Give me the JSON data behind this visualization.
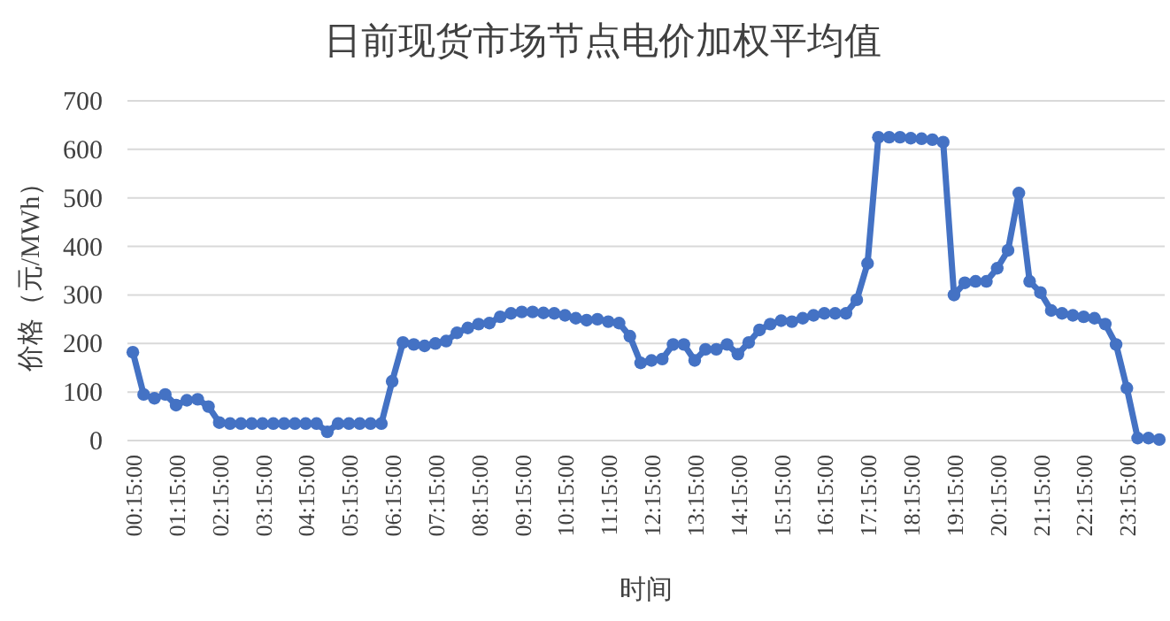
{
  "chart_data": {
    "type": "line",
    "title": "日前现货市场节点电价加权平均值",
    "xlabel": "时间",
    "ylabel": "价格（元/MWh）",
    "categories": [
      "00:15:00",
      null,
      null,
      null,
      "01:15:00",
      null,
      null,
      null,
      "02:15:00",
      null,
      null,
      null,
      "03:15:00",
      null,
      null,
      null,
      "04:15:00",
      null,
      null,
      null,
      "05:15:00",
      null,
      null,
      null,
      "06:15:00",
      null,
      null,
      null,
      "07:15:00",
      null,
      null,
      null,
      "08:15:00",
      null,
      null,
      null,
      "09:15:00",
      null,
      null,
      null,
      "10:15:00",
      null,
      null,
      null,
      "11:15:00",
      null,
      null,
      null,
      "12:15:00",
      null,
      null,
      null,
      "13:15:00",
      null,
      null,
      null,
      "14:15:00",
      null,
      null,
      null,
      "15:15:00",
      null,
      null,
      null,
      "16:15:00",
      null,
      null,
      null,
      "17:15:00",
      null,
      null,
      null,
      "18:15:00",
      null,
      null,
      null,
      "19:15:00",
      null,
      null,
      null,
      "20:15:00",
      null,
      null,
      null,
      "21:15:00",
      null,
      null,
      null,
      "22:15:00",
      null,
      null,
      null,
      "23:15:00",
      null,
      null,
      null
    ],
    "series": [
      {
        "color": "#4472c4",
        "values": [
          182,
          95,
          87,
          95,
          73,
          83,
          85,
          70,
          37,
          35,
          35,
          35,
          35,
          35,
          35,
          35,
          35,
          35,
          18,
          35,
          35,
          35,
          35,
          35,
          122,
          202,
          198,
          195,
          200,
          205,
          222,
          232,
          240,
          242,
          255,
          262,
          265,
          265,
          263,
          262,
          258,
          252,
          248,
          250,
          245,
          242,
          215,
          160,
          165,
          168,
          198,
          198,
          165,
          188,
          188,
          198,
          178,
          202,
          228,
          240,
          247,
          245,
          252,
          258,
          262,
          262,
          262,
          290,
          365,
          625,
          625,
          625,
          623,
          622,
          620,
          615,
          300,
          325,
          328,
          328,
          355,
          392,
          510,
          328,
          305,
          268,
          262,
          258,
          255,
          252,
          240,
          198,
          108,
          5,
          5,
          2
        ]
      }
    ],
    "ylim": [
      0,
      700
    ],
    "yticks": [
      0,
      100,
      200,
      300,
      400,
      500,
      600,
      700
    ],
    "grid": "y",
    "marker": "circle",
    "line_style": "solid"
  }
}
